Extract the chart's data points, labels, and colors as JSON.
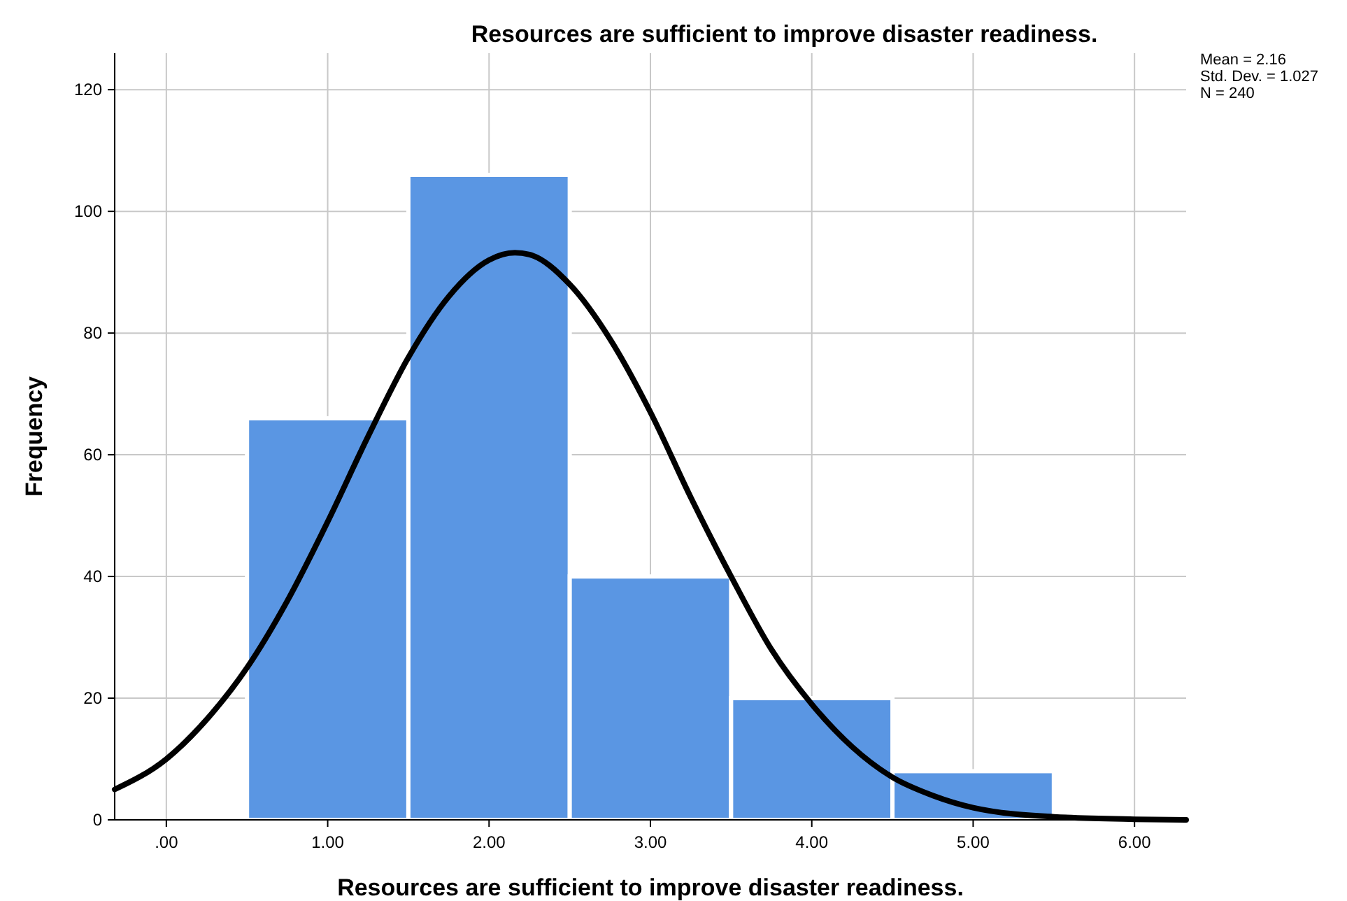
{
  "chart_data": {
    "type": "histogram",
    "title": "Resources are sufficient to improve disaster readiness.",
    "xlabel": "Resources are sufficient to improve disaster readiness.",
    "ylabel": "Frequency",
    "bins": [
      0.5,
      1.5,
      2.5,
      3.5,
      4.5,
      5.5
    ],
    "values": [
      66,
      106,
      40,
      20,
      8
    ],
    "color": "#5a96e3",
    "series": [
      {
        "type": "line",
        "color": "#000000",
        "x": [
          -0.32,
          0,
          0.25,
          0.5,
          0.75,
          1,
          1.25,
          1.5,
          1.75,
          2,
          2.16,
          2.25,
          2.5,
          2.75,
          3,
          3.25,
          3.5,
          3.75,
          4,
          4.25,
          4.5,
          4.75,
          5,
          5.5,
          6,
          6.32
        ],
        "values": [
          5,
          10,
          16.5,
          25,
          36,
          49,
          63,
          76,
          86,
          92,
          93.2,
          92.9,
          88,
          79,
          67,
          53,
          40,
          28,
          19,
          12,
          7,
          4,
          2,
          0.5,
          0.1,
          0
        ]
      }
    ],
    "xlim": [
      -0.32,
      6.32
    ],
    "xticks": [
      {
        "value": 0,
        "label": ".00"
      },
      {
        "value": 1,
        "label": "1.00"
      },
      {
        "value": 2,
        "label": "2.00"
      },
      {
        "value": 3,
        "label": "3.00"
      },
      {
        "value": 4,
        "label": "4.00"
      },
      {
        "value": 5,
        "label": "5.00"
      },
      {
        "value": 6,
        "label": "6.00"
      }
    ],
    "ylim": [
      0,
      126
    ],
    "yticks": [
      0,
      20,
      40,
      60,
      80,
      100,
      120
    ],
    "grid": true,
    "annotations": [
      "Mean = 2.16",
      "Std. Dev. = 1.027",
      "N = 240"
    ]
  }
}
